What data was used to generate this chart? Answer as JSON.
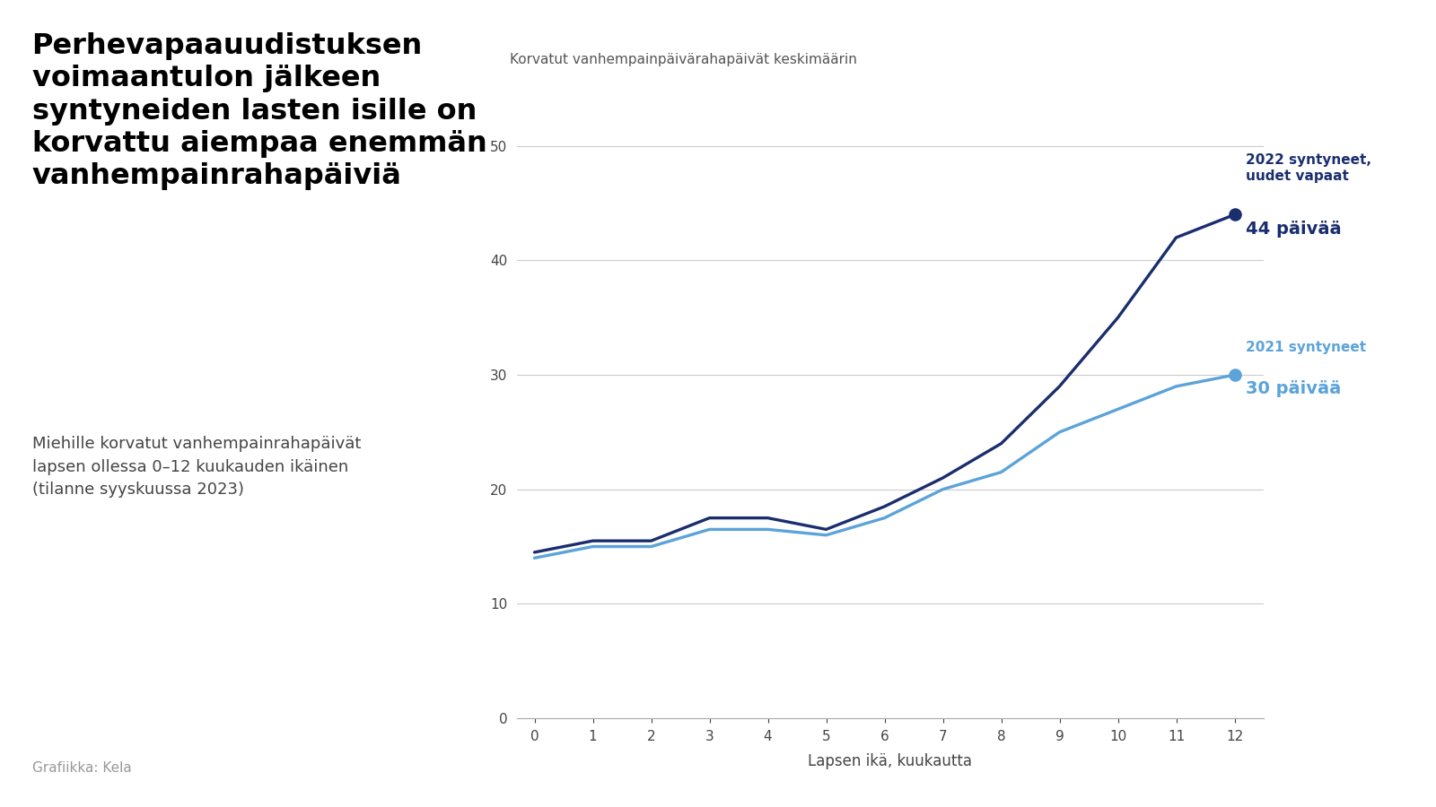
{
  "title_line1": "Perhevapaauudistuksen",
  "title_line2": "voimaantulon jälkeen",
  "title_line3": "syntyneiden lasten isille on",
  "title_line4": "korvattu aiempaa enemmän",
  "title_line5": "vanhempainrahapäiviä",
  "subtitle": "Miehille korvatut vanhempainrahapäivät\nlapsen ollessa 0–12 kuukauden ikäinen\n(tilanne syyskuussa 2023)",
  "footnote": "Grafiikka: Kela",
  "ylabel": "Korvatut vanhempainpäivärahapäivät keskimäärin",
  "xlabel": "Lapsen ikä, kuukautta",
  "x_values": [
    0,
    1,
    2,
    3,
    4,
    5,
    6,
    7,
    8,
    9,
    10,
    11,
    12
  ],
  "y_2022": [
    14.5,
    15.5,
    15.5,
    17.5,
    17.5,
    16.5,
    18.5,
    21.0,
    24.0,
    29.0,
    35.0,
    42.0,
    44.0
  ],
  "y_2021": [
    14.0,
    15.0,
    15.0,
    16.5,
    16.5,
    16.0,
    17.5,
    20.0,
    21.5,
    25.0,
    27.0,
    29.0,
    30.0
  ],
  "color_2022": "#1a2e6e",
  "color_2021": "#5ba3d9",
  "label_2022_line1": "2022 syntyneet,",
  "label_2022_line2": "uudet vapaat",
  "label_2022_value": "44 päivää",
  "label_2021_line1": "2021 syntyneet",
  "label_2021_value": "30 päivää",
  "ylim": [
    0,
    55
  ],
  "xlim": [
    -0.3,
    12.5
  ],
  "yticks": [
    0,
    10,
    20,
    30,
    40,
    50
  ],
  "xticks": [
    0,
    1,
    2,
    3,
    4,
    5,
    6,
    7,
    8,
    9,
    10,
    11,
    12
  ],
  "background_color": "#ffffff",
  "grid_color": "#cccccc",
  "title_color": "#000000",
  "subtitle_color": "#444444",
  "footnote_color": "#999999"
}
